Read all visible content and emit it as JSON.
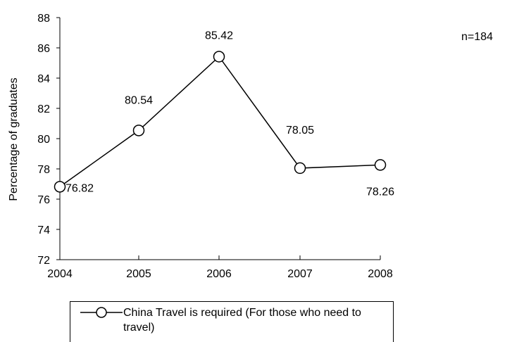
{
  "chart_data": {
    "type": "line",
    "title": "",
    "ylabel": "Percentage of graduates",
    "xlabel": "",
    "categories": [
      "2004",
      "2005",
      "2006",
      "2007",
      "2008"
    ],
    "ylim": [
      72,
      88
    ],
    "yticks": [
      "72",
      "74",
      "76",
      "78",
      "80",
      "82",
      "84",
      "86",
      "88"
    ],
    "series": [
      {
        "name": "China Travel is required (For those who need to travel)",
        "values": [
          76.82,
          80.54,
          85.42,
          78.05,
          78.26
        ],
        "labels": [
          "76.82",
          "80.54",
          "85.42",
          "78.05",
          "78.26"
        ],
        "marker": "circle",
        "color": "#000000"
      }
    ],
    "annotation": "n=184",
    "grid": false,
    "legend": "bottom"
  }
}
